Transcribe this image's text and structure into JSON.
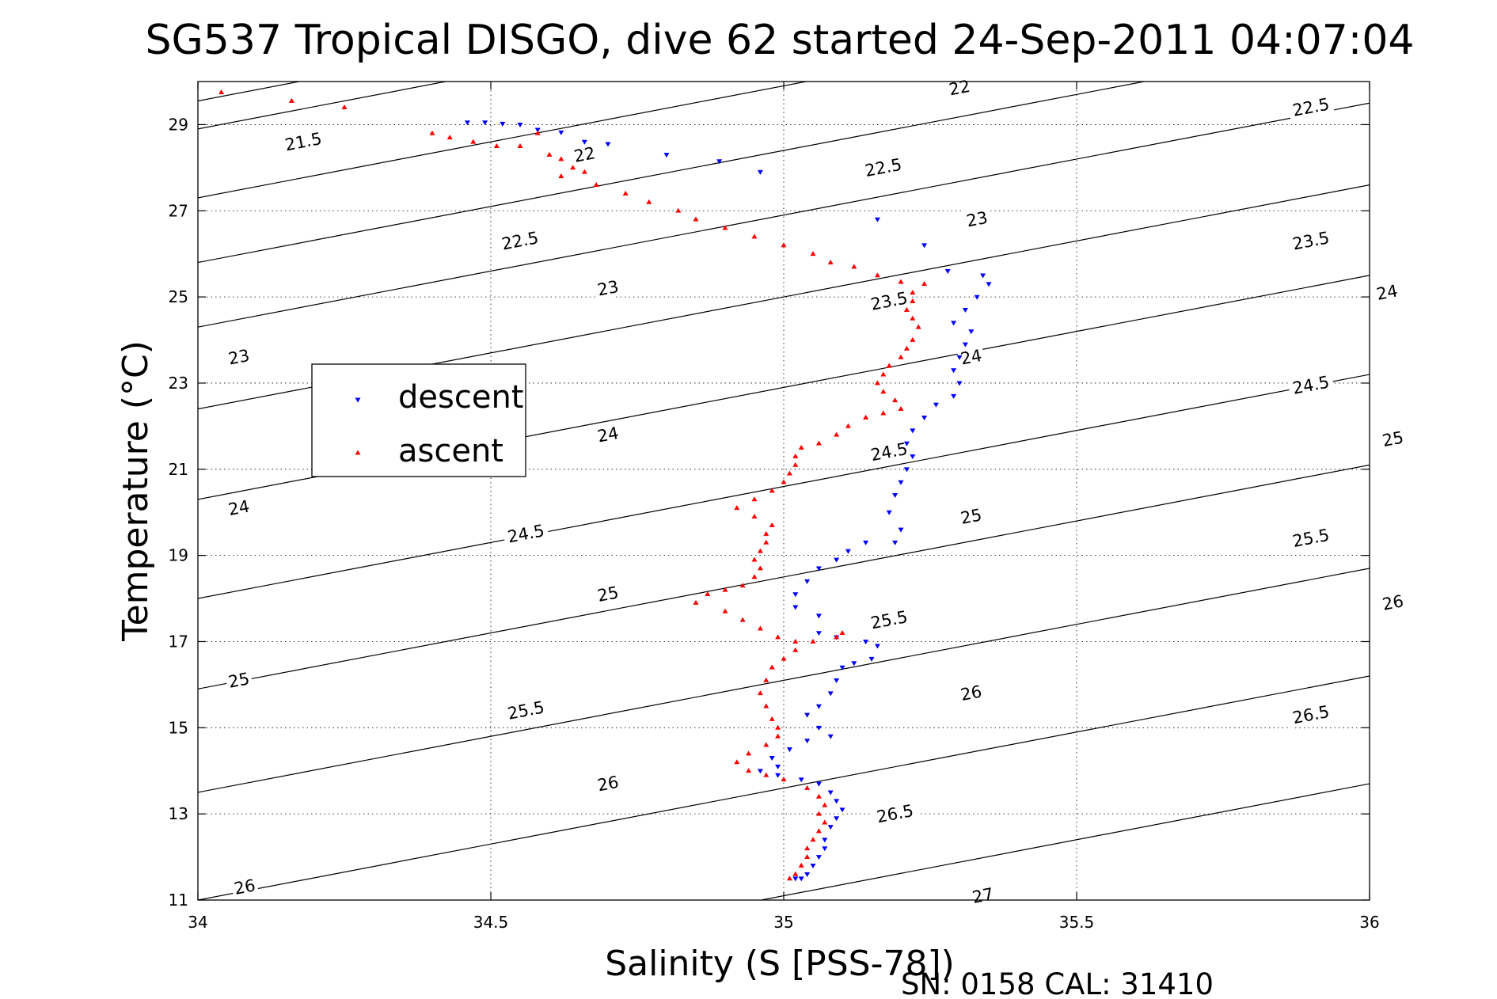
{
  "colors": {
    "descent": "#0000ff",
    "ascent": "#ff0000",
    "contour": "#000000",
    "grid": "#000000"
  },
  "footer": {
    "sn_cal": "SN: 0158  CAL: 31410"
  },
  "chart_data": {
    "type": "scatter",
    "title": "SG537 Tropical DISGO, dive 62 started 24-Sep-2011 04:07:04",
    "xlabel": "Salinity (S [PSS-78])",
    "ylabel": "Temperature (°C)",
    "xlim": [
      34,
      36
    ],
    "ylim": [
      11,
      30
    ],
    "xticks": [
      34,
      34.5,
      35,
      35.5,
      36
    ],
    "xtick_labels": [
      "34",
      "34.5",
      "35",
      "35.5",
      "36"
    ],
    "yticks": [
      11,
      13,
      15,
      17,
      19,
      21,
      23,
      25,
      27,
      29
    ],
    "ytick_labels": [
      "11",
      "13",
      "15",
      "17",
      "19",
      "21",
      "23",
      "25",
      "27",
      "29"
    ],
    "grid": true,
    "legend": {
      "position": "upper-left",
      "entries": [
        "descent",
        "ascent"
      ]
    },
    "density_contours": {
      "levels": [
        21.5,
        22,
        22.5,
        23,
        23.5,
        24,
        24.5,
        25,
        25.5,
        26,
        26.5,
        27
      ],
      "lines": [
        {
          "level": 21.5,
          "t34": 29.55,
          "slope": 2.6
        },
        {
          "level": 22,
          "t34": 28.9,
          "slope": 2.6
        },
        {
          "level": 22.5,
          "t34": 27.3,
          "slope": 2.6
        },
        {
          "level": 23,
          "t34": 25.8,
          "slope": 2.6
        },
        {
          "level": 23.5,
          "t34": 24.3,
          "slope": 2.6
        },
        {
          "level": 24,
          "t34": 22.4,
          "slope": 2.6
        },
        {
          "level": 24.5,
          "t34": 20.3,
          "slope": 2.6
        },
        {
          "level": 25,
          "t34": 18.0,
          "slope": 2.6
        },
        {
          "level": 25.5,
          "t34": 15.9,
          "slope": 2.6
        },
        {
          "level": 26,
          "t34": 13.5,
          "slope": 2.6
        },
        {
          "level": 26.5,
          "t34": 11.0,
          "slope": 2.6
        },
        {
          "level": 27,
          "t34": 8.5,
          "slope": 2.6
        }
      ],
      "labels": [
        {
          "text": "21.5",
          "s": 34.18,
          "t": 28.6
        },
        {
          "text": "22",
          "s": 35.3,
          "t": 29.85
        },
        {
          "text": "22.5",
          "s": 35.9,
          "t": 29.4
        },
        {
          "text": "22",
          "s": 34.66,
          "t": 28.3
        },
        {
          "text": "22.5",
          "s": 35.17,
          "t": 28.0
        },
        {
          "text": "23",
          "s": 35.33,
          "t": 26.8
        },
        {
          "text": "23.5",
          "s": 35.9,
          "t": 26.3
        },
        {
          "text": "22.5",
          "s": 34.55,
          "t": 26.3
        },
        {
          "text": "23",
          "s": 34.7,
          "t": 25.2
        },
        {
          "text": "23.5",
          "s": 35.18,
          "t": 24.9
        },
        {
          "text": "24",
          "s": 36.03,
          "t": 25.1
        },
        {
          "text": "23",
          "s": 34.07,
          "t": 23.6
        },
        {
          "text": "24",
          "s": 35.32,
          "t": 23.6
        },
        {
          "text": "24.5",
          "s": 35.9,
          "t": 22.95
        },
        {
          "text": "24",
          "s": 34.7,
          "t": 21.8
        },
        {
          "text": "24.5",
          "s": 35.18,
          "t": 21.4
        },
        {
          "text": "25",
          "s": 36.04,
          "t": 21.7
        },
        {
          "text": "24",
          "s": 34.07,
          "t": 20.1
        },
        {
          "text": "24.5",
          "s": 34.56,
          "t": 19.5
        },
        {
          "text": "25",
          "s": 35.32,
          "t": 19.9
        },
        {
          "text": "25.5",
          "s": 35.9,
          "t": 19.4
        },
        {
          "text": "25",
          "s": 34.7,
          "t": 18.1
        },
        {
          "text": "25.5",
          "s": 35.18,
          "t": 17.5
        },
        {
          "text": "26",
          "s": 36.04,
          "t": 17.9
        },
        {
          "text": "25",
          "s": 34.07,
          "t": 16.1
        },
        {
          "text": "26",
          "s": 35.32,
          "t": 15.8
        },
        {
          "text": "26.5",
          "s": 35.9,
          "t": 15.3
        },
        {
          "text": "25.5",
          "s": 34.56,
          "t": 15.4
        },
        {
          "text": "26",
          "s": 34.7,
          "t": 13.7
        },
        {
          "text": "26.5",
          "s": 35.19,
          "t": 13.0
        },
        {
          "text": "26",
          "s": 34.08,
          "t": 11.3
        },
        {
          "text": "27",
          "s": 35.34,
          "t": 11.1
        }
      ]
    },
    "series": [
      {
        "name": "descent",
        "marker": "triangle-down",
        "points": [
          [
            34.46,
            29.05
          ],
          [
            34.49,
            29.05
          ],
          [
            34.52,
            29.02
          ],
          [
            34.55,
            29.0
          ],
          [
            34.58,
            28.88
          ],
          [
            34.62,
            28.82
          ],
          [
            34.66,
            28.6
          ],
          [
            34.7,
            28.55
          ],
          [
            34.8,
            28.3
          ],
          [
            34.89,
            28.15
          ],
          [
            34.96,
            27.9
          ],
          [
            35.16,
            26.8
          ],
          [
            35.24,
            26.2
          ],
          [
            35.28,
            25.6
          ],
          [
            35.34,
            25.5
          ],
          [
            35.35,
            25.3
          ],
          [
            35.33,
            25.0
          ],
          [
            35.31,
            24.7
          ],
          [
            35.29,
            24.4
          ],
          [
            35.32,
            24.2
          ],
          [
            35.31,
            23.9
          ],
          [
            35.3,
            23.6
          ],
          [
            35.29,
            23.3
          ],
          [
            35.3,
            23.0
          ],
          [
            35.29,
            22.7
          ],
          [
            35.26,
            22.5
          ],
          [
            35.24,
            22.2
          ],
          [
            35.22,
            21.9
          ],
          [
            35.21,
            21.6
          ],
          [
            35.22,
            21.3
          ],
          [
            35.21,
            21.0
          ],
          [
            35.2,
            20.7
          ],
          [
            35.19,
            20.4
          ],
          [
            35.18,
            20.0
          ],
          [
            35.2,
            19.6
          ],
          [
            35.19,
            19.3
          ],
          [
            35.14,
            19.3
          ],
          [
            35.11,
            19.1
          ],
          [
            35.09,
            18.9
          ],
          [
            35.06,
            18.7
          ],
          [
            35.04,
            18.4
          ],
          [
            35.02,
            18.1
          ],
          [
            35.02,
            17.8
          ],
          [
            35.06,
            17.6
          ],
          [
            35.06,
            17.2
          ],
          [
            35.09,
            17.1
          ],
          [
            35.14,
            17.0
          ],
          [
            35.16,
            16.9
          ],
          [
            35.15,
            16.6
          ],
          [
            35.12,
            16.5
          ],
          [
            35.1,
            16.4
          ],
          [
            35.09,
            16.1
          ],
          [
            35.08,
            15.8
          ],
          [
            35.06,
            15.5
          ],
          [
            35.04,
            15.3
          ],
          [
            35.06,
            15.0
          ],
          [
            35.08,
            14.8
          ],
          [
            35.04,
            14.7
          ],
          [
            35.01,
            14.5
          ],
          [
            34.98,
            14.3
          ],
          [
            34.99,
            14.1
          ],
          [
            34.96,
            14.0
          ],
          [
            34.99,
            13.9
          ],
          [
            35.03,
            13.8
          ],
          [
            35.06,
            13.7
          ],
          [
            35.08,
            13.5
          ],
          [
            35.09,
            13.3
          ],
          [
            35.1,
            13.1
          ],
          [
            35.09,
            12.9
          ],
          [
            35.08,
            12.7
          ],
          [
            35.07,
            12.4
          ],
          [
            35.07,
            12.2
          ],
          [
            35.06,
            12.0
          ],
          [
            35.05,
            11.8
          ],
          [
            35.04,
            11.6
          ],
          [
            35.03,
            11.5
          ],
          [
            35.02,
            11.5
          ]
        ]
      },
      {
        "name": "ascent",
        "marker": "triangle-up",
        "points": [
          [
            34.04,
            29.75
          ],
          [
            34.16,
            29.55
          ],
          [
            34.25,
            29.4
          ],
          [
            34.4,
            28.8
          ],
          [
            34.43,
            28.7
          ],
          [
            34.47,
            28.6
          ],
          [
            34.51,
            28.5
          ],
          [
            34.55,
            28.5
          ],
          [
            34.58,
            28.8
          ],
          [
            34.6,
            28.3
          ],
          [
            34.62,
            28.2
          ],
          [
            34.64,
            28.0
          ],
          [
            34.66,
            27.9
          ],
          [
            34.62,
            27.8
          ],
          [
            34.68,
            27.6
          ],
          [
            34.73,
            27.4
          ],
          [
            34.77,
            27.2
          ],
          [
            34.82,
            27.0
          ],
          [
            34.85,
            26.8
          ],
          [
            34.9,
            26.6
          ],
          [
            34.95,
            26.4
          ],
          [
            35.0,
            26.2
          ],
          [
            35.05,
            26.0
          ],
          [
            35.08,
            25.8
          ],
          [
            35.12,
            25.7
          ],
          [
            35.16,
            25.5
          ],
          [
            35.2,
            25.35
          ],
          [
            35.24,
            25.3
          ],
          [
            35.22,
            25.1
          ],
          [
            35.22,
            24.9
          ],
          [
            35.21,
            24.7
          ],
          [
            35.22,
            24.5
          ],
          [
            35.23,
            24.3
          ],
          [
            35.22,
            24.0
          ],
          [
            35.21,
            23.8
          ],
          [
            35.2,
            23.6
          ],
          [
            35.18,
            23.4
          ],
          [
            35.17,
            23.2
          ],
          [
            35.16,
            23.0
          ],
          [
            35.17,
            22.8
          ],
          [
            35.19,
            22.6
          ],
          [
            35.2,
            22.4
          ],
          [
            35.17,
            22.3
          ],
          [
            35.14,
            22.2
          ],
          [
            35.11,
            22.0
          ],
          [
            35.09,
            21.8
          ],
          [
            35.06,
            21.6
          ],
          [
            35.03,
            21.5
          ],
          [
            35.02,
            21.3
          ],
          [
            35.02,
            21.1
          ],
          [
            35.01,
            20.9
          ],
          [
            35.0,
            20.7
          ],
          [
            34.98,
            20.5
          ],
          [
            34.95,
            20.3
          ],
          [
            34.92,
            20.1
          ],
          [
            34.95,
            19.9
          ],
          [
            34.98,
            19.7
          ],
          [
            34.97,
            19.5
          ],
          [
            34.97,
            19.3
          ],
          [
            34.96,
            19.1
          ],
          [
            34.95,
            18.9
          ],
          [
            34.96,
            18.7
          ],
          [
            34.95,
            18.5
          ],
          [
            34.93,
            18.3
          ],
          [
            34.9,
            18.2
          ],
          [
            34.87,
            18.1
          ],
          [
            34.85,
            17.9
          ],
          [
            34.9,
            17.7
          ],
          [
            34.93,
            17.5
          ],
          [
            34.96,
            17.3
          ],
          [
            34.99,
            17.1
          ],
          [
            35.02,
            17.0
          ],
          [
            35.05,
            17.0
          ],
          [
            35.09,
            17.1
          ],
          [
            35.1,
            17.2
          ],
          [
            35.02,
            16.8
          ],
          [
            35.0,
            16.6
          ],
          [
            34.98,
            16.4
          ],
          [
            34.97,
            16.1
          ],
          [
            34.96,
            15.8
          ],
          [
            34.97,
            15.5
          ],
          [
            34.98,
            15.2
          ],
          [
            34.99,
            15.0
          ],
          [
            34.99,
            14.8
          ],
          [
            34.97,
            14.6
          ],
          [
            34.94,
            14.4
          ],
          [
            34.92,
            14.2
          ],
          [
            34.94,
            14.0
          ],
          [
            34.97,
            13.9
          ],
          [
            35.0,
            13.8
          ],
          [
            35.04,
            13.6
          ],
          [
            35.06,
            13.4
          ],
          [
            35.07,
            13.2
          ],
          [
            35.06,
            13.0
          ],
          [
            35.07,
            12.8
          ],
          [
            35.06,
            12.6
          ],
          [
            35.05,
            12.4
          ],
          [
            35.04,
            12.2
          ],
          [
            35.04,
            12.0
          ],
          [
            35.03,
            11.8
          ],
          [
            35.02,
            11.6
          ],
          [
            35.01,
            11.5
          ]
        ]
      }
    ]
  }
}
